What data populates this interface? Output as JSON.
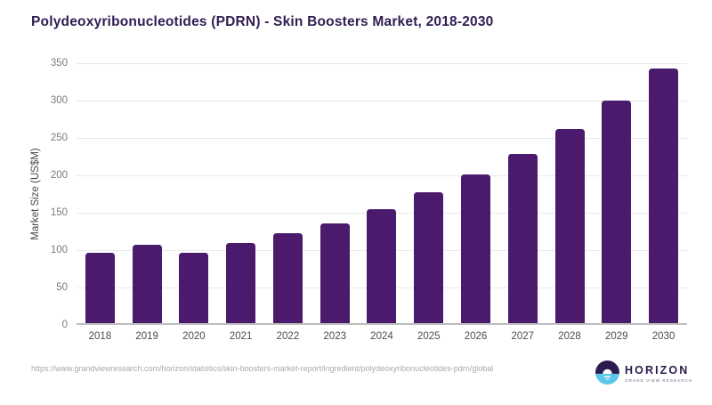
{
  "chart_data": {
    "type": "bar",
    "title": "Polydeoxyribonucleotides (PDRN) - Skin Boosters Market, 2018-2030",
    "categories": [
      "2018",
      "2019",
      "2020",
      "2021",
      "2022",
      "2023",
      "2024",
      "2025",
      "2026",
      "2027",
      "2028",
      "2029",
      "2030"
    ],
    "values": [
      97,
      107,
      97,
      110,
      123,
      136,
      155,
      177,
      201,
      229,
      262,
      300,
      343
    ],
    "xlabel": "",
    "ylabel": "Market Size (US$M)",
    "ylim": [
      0,
      350
    ],
    "yticks": [
      0,
      50,
      100,
      150,
      200,
      250,
      300,
      350
    ],
    "grid": true,
    "legend": "none",
    "bar_color": "#4b1a6c"
  },
  "colors": {
    "bar": "#4b1a6c",
    "title_text": "#321c52",
    "logo_dark": "#2b1b4e",
    "logo_blue": "#5bc6e8",
    "gridline": "#e9e9e9"
  },
  "footer": {
    "source_url": "https://www.grandviewresearch.com/horizon/statistics/skin-boosters-market-report/ingredient/polydeoxyribonucleotides-pdrn/global"
  },
  "logo": {
    "name": "HORIZON",
    "subtitle": "GRAND VIEW RESEARCH"
  }
}
